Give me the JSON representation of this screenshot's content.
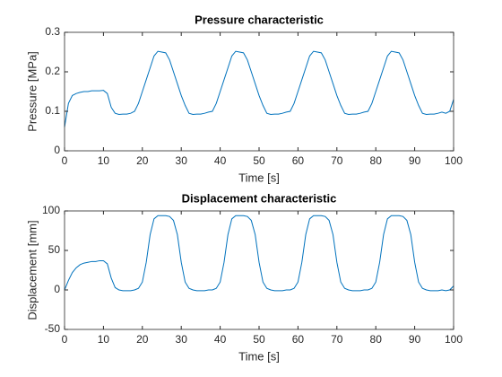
{
  "chart_data": [
    {
      "type": "line",
      "title": "Pressure characteristic",
      "xlabel": "Time [s]",
      "ylabel": "Pressure [MPa]",
      "color": "#0072bd",
      "x": [
        0,
        1,
        2,
        3,
        4,
        5,
        6,
        7,
        8,
        9,
        10,
        11,
        12,
        13,
        14,
        15,
        16,
        17,
        18,
        19,
        20,
        21,
        22,
        23,
        24,
        25,
        26,
        27,
        28,
        29,
        30,
        31,
        32,
        33,
        34,
        35,
        36,
        37,
        38,
        39,
        40,
        41,
        42,
        43,
        44,
        45,
        46,
        47,
        48,
        49,
        50,
        51,
        52,
        53,
        54,
        55,
        56,
        57,
        58,
        59,
        60,
        61,
        62,
        63,
        64,
        65,
        66,
        67,
        68,
        69,
        70,
        71,
        72,
        73,
        74,
        75,
        76,
        77,
        78,
        79,
        80,
        81,
        82,
        83,
        84,
        85,
        86,
        87,
        88,
        89,
        90,
        91,
        92,
        93,
        94,
        95,
        96,
        97,
        98,
        99,
        100
      ],
      "values": [
        0.06,
        0.12,
        0.14,
        0.145,
        0.148,
        0.15,
        0.15,
        0.152,
        0.152,
        0.152,
        0.153,
        0.145,
        0.11,
        0.095,
        0.092,
        0.093,
        0.093,
        0.095,
        0.1,
        0.12,
        0.15,
        0.18,
        0.21,
        0.24,
        0.252,
        0.25,
        0.248,
        0.23,
        0.2,
        0.17,
        0.14,
        0.115,
        0.095,
        0.092,
        0.093,
        0.093,
        0.095,
        0.098,
        0.1,
        0.12,
        0.15,
        0.18,
        0.21,
        0.24,
        0.252,
        0.25,
        0.248,
        0.23,
        0.2,
        0.17,
        0.14,
        0.115,
        0.095,
        0.092,
        0.093,
        0.093,
        0.095,
        0.098,
        0.1,
        0.12,
        0.15,
        0.18,
        0.21,
        0.24,
        0.252,
        0.25,
        0.248,
        0.23,
        0.2,
        0.17,
        0.14,
        0.115,
        0.095,
        0.092,
        0.093,
        0.093,
        0.095,
        0.098,
        0.1,
        0.12,
        0.15,
        0.18,
        0.21,
        0.24,
        0.252,
        0.25,
        0.248,
        0.23,
        0.2,
        0.17,
        0.14,
        0.115,
        0.095,
        0.092,
        0.093,
        0.093,
        0.095,
        0.098,
        0.095,
        0.1,
        0.13
      ],
      "xlim": [
        0,
        100
      ],
      "xticks": [
        0,
        10,
        20,
        30,
        40,
        50,
        60,
        70,
        80,
        90,
        100
      ],
      "ylim": [
        0,
        0.3
      ],
      "yticks": [
        0,
        0.1,
        0.2,
        0.3
      ]
    },
    {
      "type": "line",
      "title": "Displacement characteristic",
      "xlabel": "Time [s]",
      "ylabel": "Displacement [mm]",
      "color": "#0072bd",
      "x": [
        0,
        1,
        2,
        3,
        4,
        5,
        6,
        7,
        8,
        9,
        10,
        11,
        12,
        13,
        14,
        15,
        16,
        17,
        18,
        19,
        20,
        21,
        22,
        23,
        24,
        25,
        26,
        27,
        28,
        29,
        30,
        31,
        32,
        33,
        34,
        35,
        36,
        37,
        38,
        39,
        40,
        41,
        42,
        43,
        44,
        45,
        46,
        47,
        48,
        49,
        50,
        51,
        52,
        53,
        54,
        55,
        56,
        57,
        58,
        59,
        60,
        61,
        62,
        63,
        64,
        65,
        66,
        67,
        68,
        69,
        70,
        71,
        72,
        73,
        74,
        75,
        76,
        77,
        78,
        79,
        80,
        81,
        82,
        83,
        84,
        85,
        86,
        87,
        88,
        89,
        90,
        91,
        92,
        93,
        94,
        95,
        96,
        97,
        98,
        99,
        100
      ],
      "values": [
        0,
        12,
        22,
        28,
        32,
        34,
        35,
        36,
        36,
        37,
        37,
        33,
        15,
        3,
        0,
        -1,
        -1,
        -1,
        0,
        2,
        10,
        35,
        70,
        90,
        94,
        94,
        94,
        93,
        88,
        70,
        35,
        10,
        2,
        0,
        -1,
        -1,
        -1,
        0,
        0,
        2,
        10,
        35,
        70,
        90,
        94,
        94,
        94,
        93,
        88,
        70,
        35,
        10,
        2,
        0,
        -1,
        -1,
        -1,
        0,
        0,
        2,
        10,
        35,
        70,
        90,
        94,
        94,
        94,
        93,
        88,
        70,
        35,
        10,
        2,
        0,
        -1,
        -1,
        -1,
        0,
        0,
        2,
        10,
        35,
        70,
        90,
        94,
        94,
        94,
        93,
        88,
        70,
        35,
        10,
        2,
        0,
        -1,
        -1,
        -1,
        0,
        -1,
        0,
        5
      ],
      "xlim": [
        0,
        100
      ],
      "xticks": [
        0,
        10,
        20,
        30,
        40,
        50,
        60,
        70,
        80,
        90,
        100
      ],
      "ylim": [
        -50,
        100
      ],
      "yticks": [
        -50,
        0,
        50,
        100
      ]
    }
  ]
}
